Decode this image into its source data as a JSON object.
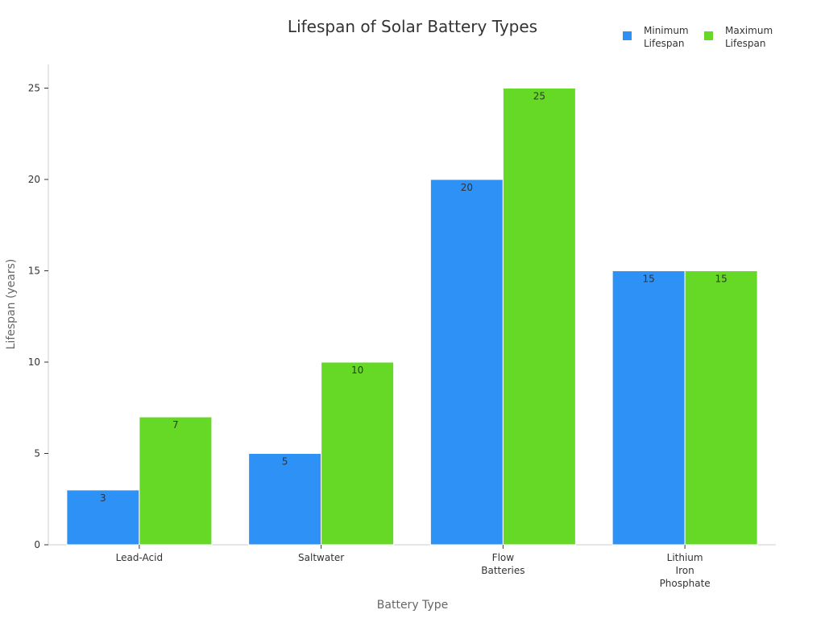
{
  "chart_data": {
    "type": "bar",
    "title": "Lifespan of Solar Battery Types",
    "xlabel": "Battery Type",
    "ylabel": "Lifespan (years)",
    "ylim": [
      0,
      26.3
    ],
    "yticks": [
      0,
      5,
      10,
      15,
      20,
      25
    ],
    "categories": [
      "Lead-Acid",
      "Saltwater",
      "Flow Batteries",
      "Lithium Iron Phosphate"
    ],
    "category_lines": [
      [
        "Lead-Acid"
      ],
      [
        "Saltwater"
      ],
      [
        "Flow",
        "Batteries"
      ],
      [
        "Lithium",
        "Iron",
        "Phosphate"
      ]
    ],
    "series": [
      {
        "name": "Minimum Lifespan",
        "name_lines": [
          "Minimum",
          "Lifespan"
        ],
        "color": "#2e91f5",
        "values": [
          3,
          5,
          20,
          15
        ]
      },
      {
        "name": "Maximum Lifespan",
        "name_lines": [
          "Maximum",
          "Lifespan"
        ],
        "color": "#66d927",
        "values": [
          7,
          10,
          25,
          15
        ]
      }
    ],
    "grid": false,
    "legend_position": "top-right"
  }
}
